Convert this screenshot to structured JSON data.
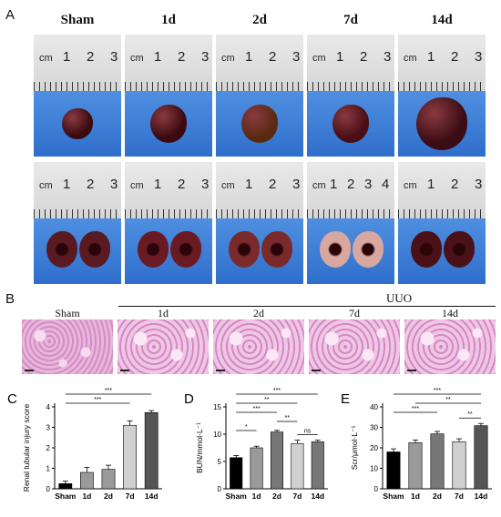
{
  "panel_a": {
    "letter": "A",
    "columns": [
      "Sham",
      "1d",
      "2d",
      "7d",
      "14d"
    ],
    "ruler_labels": [
      "cm",
      "1",
      "2",
      "3"
    ],
    "ruler_labels_14": [
      "cm",
      "1",
      "2",
      "3",
      "4"
    ]
  },
  "panel_b": {
    "letter": "B",
    "group_label": "UUO",
    "columns": [
      "Sham",
      "1d",
      "2d",
      "7d",
      "14d"
    ]
  },
  "chart_data": [
    {
      "type": "bar",
      "letter": "C",
      "categories": [
        "Sham",
        "1d",
        "2d",
        "7d",
        "14d"
      ],
      "values": [
        0.25,
        0.8,
        0.95,
        3.1,
        3.72
      ],
      "errors": [
        0.12,
        0.25,
        0.2,
        0.22,
        0.1
      ],
      "ylabel": "Renal tubular injury score",
      "ylim": [
        0,
        4
      ],
      "yticks": [
        "0",
        "1",
        "2",
        "3",
        "4"
      ],
      "colors": [
        "#000000",
        "#9a9a9a",
        "#9a9a9a",
        "#d0d0d0",
        "#555555"
      ],
      "significance": [
        {
          "from": 0,
          "to": 4,
          "label": "***"
        },
        {
          "from": 0,
          "to": 3,
          "label": "***"
        }
      ]
    },
    {
      "type": "bar",
      "letter": "D",
      "categories": [
        "Sham",
        "1d",
        "2d",
        "7d",
        "14d"
      ],
      "values": [
        5.7,
        7.5,
        10.4,
        8.3,
        8.6
      ],
      "errors": [
        0.4,
        0.3,
        0.3,
        0.6,
        0.3
      ],
      "ylabel": "BUN/mmol·L⁻¹",
      "ylim": [
        0,
        15
      ],
      "yticks": [
        "0",
        "5",
        "10",
        "15"
      ],
      "colors": [
        "#000000",
        "#9a9a9a",
        "#777777",
        "#d0d0d0",
        "#777777"
      ],
      "significance": [
        {
          "from": 0,
          "to": 4,
          "label": "***"
        },
        {
          "from": 0,
          "to": 3,
          "label": "**"
        },
        {
          "from": 0,
          "to": 2,
          "label": "***"
        },
        {
          "from": 2,
          "to": 3,
          "label": "**"
        },
        {
          "from": 0,
          "to": 1,
          "label": "*"
        },
        {
          "from": 3,
          "to": 4,
          "label": "ns"
        }
      ]
    },
    {
      "type": "bar",
      "letter": "E",
      "categories": [
        "Sham",
        "1d",
        "2d",
        "7d",
        "14d"
      ],
      "values": [
        18,
        22.5,
        26.8,
        23,
        30.8
      ],
      "errors": [
        1.5,
        1.3,
        1.2,
        1.4,
        1.1
      ],
      "ylabel": "Scr/μmol·L⁻¹",
      "ylim": [
        0,
        40
      ],
      "yticks": [
        "0",
        "10",
        "20",
        "30",
        "40"
      ],
      "colors": [
        "#000000",
        "#9a9a9a",
        "#777777",
        "#d0d0d0",
        "#555555"
      ],
      "significance": [
        {
          "from": 0,
          "to": 4,
          "label": "***"
        },
        {
          "from": 1,
          "to": 4,
          "label": "**"
        },
        {
          "from": 0,
          "to": 2,
          "label": "***"
        },
        {
          "from": 3,
          "to": 4,
          "label": "**"
        }
      ]
    }
  ]
}
